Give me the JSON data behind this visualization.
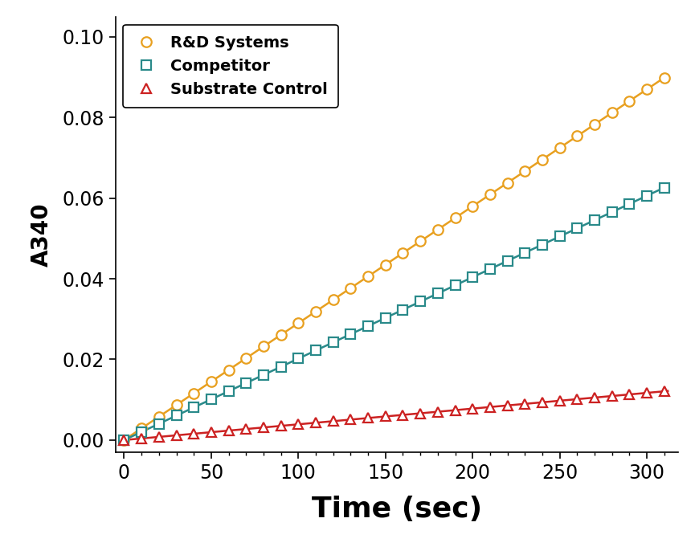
{
  "title": "",
  "xlabel": "Time (sec)",
  "ylabel": "A340",
  "xlim": [
    -5,
    318
  ],
  "ylim": [
    -0.003,
    0.105
  ],
  "xticks": [
    0,
    50,
    100,
    150,
    200,
    250,
    300
  ],
  "yticks": [
    0.0,
    0.02,
    0.04,
    0.06,
    0.08,
    0.1
  ],
  "series": [
    {
      "label": "R&D Systems",
      "color": "#E8A020",
      "marker": "o",
      "slope": 0.00029,
      "intercept": 0.0
    },
    {
      "label": "Competitor",
      "color": "#2A8A8A",
      "marker": "s",
      "slope": 0.000202,
      "intercept": 0.0
    },
    {
      "label": "Substrate Control",
      "color": "#CC2222",
      "marker": "^",
      "slope": 3.9e-05,
      "intercept": 0.0
    }
  ],
  "x_data_points": [
    0,
    10,
    20,
    30,
    40,
    50,
    60,
    70,
    80,
    90,
    100,
    110,
    120,
    130,
    140,
    150,
    160,
    170,
    180,
    190,
    200,
    210,
    220,
    230,
    240,
    250,
    260,
    270,
    280,
    290,
    300,
    310
  ],
  "background_color": "#ffffff",
  "legend_fontsize": 14,
  "axis_label_fontsize": 20,
  "tick_fontsize": 17,
  "xlabel_fontsize": 26,
  "linewidth": 1.8,
  "markersize": 9,
  "markeredgewidth": 1.6,
  "figure_width": 8.65,
  "figure_height": 6.86,
  "dpi": 100
}
